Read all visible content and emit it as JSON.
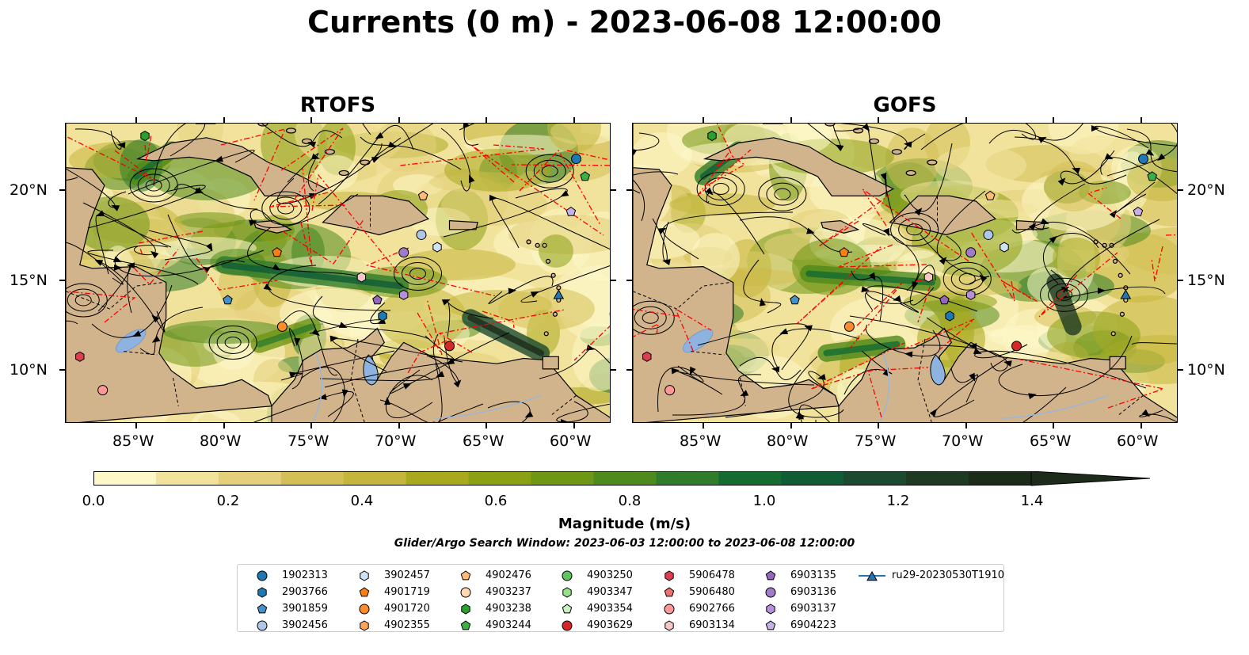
{
  "title": "Currents (0 m) - 2023-06-08 12:00:00",
  "panels": [
    {
      "title": "RTOFS"
    },
    {
      "title": "GOFS"
    }
  ],
  "lon_ticks": [
    "85°W",
    "80°W",
    "75°W",
    "70°W",
    "65°W",
    "60°W"
  ],
  "lat_ticks": [
    "20°N",
    "15°N",
    "10°N"
  ],
  "colors": {
    "land": "#d2b48c",
    "lake": "#8fb3e0",
    "eez_line": "#ff0000",
    "colormap": [
      "#fef8c8",
      "#f2e39c",
      "#e4cf7a",
      "#d4bf56",
      "#c4b63c",
      "#a9a91f",
      "#8ca015",
      "#6f9614",
      "#4f8a1c",
      "#2f7c2a",
      "#156c32",
      "#0f5c36",
      "#1c4a30",
      "#1f3a23",
      "#1c2b1a"
    ]
  },
  "colorbar": {
    "label": "Magnitude (m/s)",
    "ticks": [
      "0.0",
      "0.2",
      "0.4",
      "0.6",
      "0.8",
      "1.0",
      "1.2",
      "1.4"
    ],
    "min": 0.0,
    "max": 1.5,
    "extend": "max"
  },
  "search_window": "Glider/Argo Search Window: 2023-06-03 12:00:00 to 2023-06-08 12:00:00",
  "legend": [
    {
      "id": "1902313",
      "marker": "circle",
      "color": "#1f77b4"
    },
    {
      "id": "2903766",
      "marker": "hexagon",
      "color": "#1f77b4"
    },
    {
      "id": "3901859",
      "marker": "pentagon",
      "color": "#4a90c8"
    },
    {
      "id": "3902456",
      "marker": "circle",
      "color": "#aec7e8"
    },
    {
      "id": "3902457",
      "marker": "hexagon",
      "color": "#cfe3f5"
    },
    {
      "id": "4901719",
      "marker": "pentagon",
      "color": "#ff7f0e"
    },
    {
      "id": "4901720",
      "marker": "circle",
      "color": "#ff8c2a"
    },
    {
      "id": "4902355",
      "marker": "hexagon",
      "color": "#ffa55a"
    },
    {
      "id": "4902476",
      "marker": "pentagon",
      "color": "#ffbb78"
    },
    {
      "id": "4903237",
      "marker": "circle",
      "color": "#ffd9b0"
    },
    {
      "id": "4903238",
      "marker": "hexagon",
      "color": "#2ca02c"
    },
    {
      "id": "4903244",
      "marker": "pentagon",
      "color": "#3cb043"
    },
    {
      "id": "4903250",
      "marker": "circle",
      "color": "#5fc45f"
    },
    {
      "id": "4903347",
      "marker": "hexagon",
      "color": "#98df8a"
    },
    {
      "id": "4903354",
      "marker": "pentagon",
      "color": "#c8f0c0"
    },
    {
      "id": "4903629",
      "marker": "circle",
      "color": "#d62728"
    },
    {
      "id": "5906478",
      "marker": "hexagon",
      "color": "#d94050"
    },
    {
      "id": "5906480",
      "marker": "pentagon",
      "color": "#f07070"
    },
    {
      "id": "6902766",
      "marker": "circle",
      "color": "#ff9896"
    },
    {
      "id": "6903134",
      "marker": "hexagon",
      "color": "#f7c6c6"
    },
    {
      "id": "6903135",
      "marker": "pentagon",
      "color": "#9467bd"
    },
    {
      "id": "6903136",
      "marker": "circle",
      "color": "#a07cc8"
    },
    {
      "id": "6903137",
      "marker": "hexagon",
      "color": "#b88ede"
    },
    {
      "id": "6904223",
      "marker": "pentagon",
      "color": "#c5b0e8"
    },
    {
      "id": "ru29-20230530T1910",
      "marker": "triangle-line",
      "color": "#1f77b4"
    }
  ],
  "floats": [
    {
      "id": "1902313",
      "lon": -60.0,
      "lat": 22.0
    },
    {
      "id": "2903766",
      "lon": -71.0,
      "lat": 13.1
    },
    {
      "id": "3901859",
      "lon": -79.8,
      "lat": 14.0
    },
    {
      "id": "3902456",
      "lon": -68.8,
      "lat": 17.7
    },
    {
      "id": "3902457",
      "lon": -67.9,
      "lat": 17.0
    },
    {
      "id": "4901719",
      "lon": -77.0,
      "lat": 16.7
    },
    {
      "id": "4901720",
      "lon": -76.7,
      "lat": 12.5
    },
    {
      "id": "4902476",
      "lon": -68.7,
      "lat": 19.9
    },
    {
      "id": "4903238",
      "lon": -84.5,
      "lat": 23.3
    },
    {
      "id": "4903244",
      "lon": -59.5,
      "lat": 21.0
    },
    {
      "id": "4903629",
      "lon": -67.2,
      "lat": 11.4
    },
    {
      "id": "5906478",
      "lon": -88.2,
      "lat": 10.8
    },
    {
      "id": "6902766",
      "lon": -86.9,
      "lat": 8.9
    },
    {
      "id": "6903134",
      "lon": -72.2,
      "lat": 15.3
    },
    {
      "id": "6903135",
      "lon": -71.3,
      "lat": 14.0
    },
    {
      "id": "6903136",
      "lon": -69.8,
      "lat": 16.7
    },
    {
      "id": "6903137",
      "lon": -69.8,
      "lat": 14.3
    },
    {
      "id": "6904223",
      "lon": -60.3,
      "lat": 19.0
    },
    {
      "id": "ru29-20230530T1910",
      "lon": -61.0,
      "lat": 14.3
    }
  ]
}
